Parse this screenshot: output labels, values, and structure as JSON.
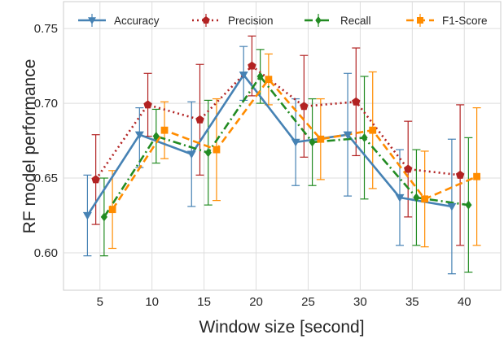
{
  "chart_data": {
    "type": "line",
    "xlabel": "Window size [second]",
    "ylabel": "RF model performance",
    "x": [
      5,
      10,
      15,
      20,
      25,
      30,
      35,
      40
    ],
    "xlim": [
      1.5,
      43.5
    ],
    "ylim": [
      0.575,
      0.768
    ],
    "yticks": [
      0.6,
      0.65,
      0.7,
      0.75
    ],
    "yticklabels": [
      "0.60",
      "0.65",
      "0.70",
      "0.75"
    ],
    "xticklabels": [
      "5",
      "10",
      "15",
      "20",
      "25",
      "30",
      "35",
      "40"
    ],
    "grid": true,
    "legend_position": "top",
    "series": [
      {
        "name": "Accuracy",
        "color": "#4682b4",
        "linestyle": "solid",
        "marker": "triangle-down",
        "x_offset": -1.2,
        "values": [
          0.625,
          0.679,
          0.666,
          0.719,
          0.674,
          0.679,
          0.637,
          0.631
        ],
        "err_low": [
          0.598,
          0.657,
          0.631,
          0.702,
          0.645,
          0.638,
          0.605,
          0.586
        ],
        "err_high": [
          0.652,
          0.697,
          0.701,
          0.738,
          0.703,
          0.72,
          0.669,
          0.676
        ]
      },
      {
        "name": "Precision",
        "color": "#b22222",
        "linestyle": "dotted",
        "marker": "pentagon",
        "x_offset": -0.4,
        "values": [
          0.649,
          0.699,
          0.689,
          0.725,
          0.698,
          0.701,
          0.656,
          0.652
        ],
        "err_low": [
          0.619,
          0.678,
          0.652,
          0.705,
          0.664,
          0.665,
          0.624,
          0.605
        ],
        "err_high": [
          0.679,
          0.72,
          0.726,
          0.745,
          0.732,
          0.737,
          0.688,
          0.699
        ]
      },
      {
        "name": "Recall",
        "color": "#228b22",
        "linestyle": "dashdot",
        "marker": "diamond",
        "x_offset": 0.4,
        "values": [
          0.624,
          0.678,
          0.667,
          0.718,
          0.674,
          0.677,
          0.637,
          0.632
        ],
        "err_low": [
          0.598,
          0.66,
          0.632,
          0.7,
          0.645,
          0.636,
          0.605,
          0.587
        ],
        "err_high": [
          0.65,
          0.696,
          0.702,
          0.736,
          0.703,
          0.718,
          0.669,
          0.677
        ]
      },
      {
        "name": "F1-Score",
        "color": "#ff8c00",
        "linestyle": "dashed",
        "marker": "square",
        "x_offset": 1.2,
        "values": [
          0.629,
          0.682,
          0.669,
          0.716,
          0.676,
          0.682,
          0.636,
          0.651
        ],
        "err_low": [
          0.603,
          0.663,
          0.635,
          0.699,
          0.649,
          0.643,
          0.604,
          0.605
        ],
        "err_high": [
          0.655,
          0.701,
          0.703,
          0.733,
          0.703,
          0.721,
          0.668,
          0.697
        ]
      }
    ]
  }
}
